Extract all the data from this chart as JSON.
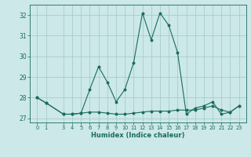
{
  "xlabel": "Humidex (Indice chaleur)",
  "background_color": "#cce8e8",
  "grid_color": "#a0c8c8",
  "line_color": "#1a6b60",
  "x_ticks": [
    0,
    1,
    3,
    4,
    5,
    6,
    7,
    8,
    9,
    10,
    11,
    12,
    13,
    14,
    15,
    16,
    17,
    18,
    19,
    20,
    21,
    22,
    23
  ],
  "ylim": [
    26.8,
    32.5
  ],
  "yticks": [
    27,
    28,
    29,
    30,
    31,
    32
  ],
  "series1_x": [
    0,
    1,
    3,
    4,
    5,
    6,
    7,
    8,
    9,
    10,
    11,
    12,
    13,
    14,
    15,
    16,
    17,
    18,
    19,
    20,
    21,
    22,
    23
  ],
  "series1_y": [
    28.0,
    27.75,
    27.2,
    27.2,
    27.25,
    27.3,
    27.3,
    27.25,
    27.2,
    27.2,
    27.25,
    27.3,
    27.35,
    27.35,
    27.35,
    27.4,
    27.4,
    27.4,
    27.5,
    27.6,
    27.4,
    27.3,
    27.6
  ],
  "series2_x": [
    0,
    1,
    3,
    4,
    5,
    6,
    7,
    8,
    9,
    10,
    11,
    12,
    13,
    14,
    15,
    16,
    17,
    18,
    19,
    20,
    21,
    22,
    23
  ],
  "series2_y": [
    28.0,
    27.75,
    27.2,
    27.2,
    27.25,
    28.4,
    29.5,
    28.75,
    27.8,
    28.4,
    29.7,
    32.1,
    30.8,
    32.1,
    31.5,
    30.2,
    27.2,
    27.5,
    27.6,
    27.8,
    27.2,
    27.3,
    27.6
  ]
}
